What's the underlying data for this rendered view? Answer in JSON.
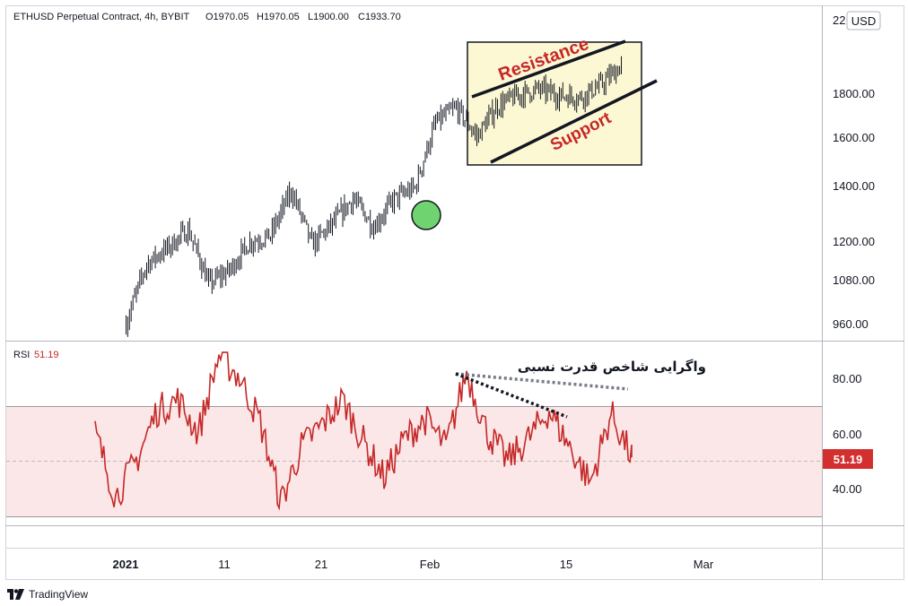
{
  "header": {
    "symbol": "ETHUSD Perpetual Contract, 4h, BYBIT",
    "open": "O1970.05",
    "high": "H1970.05",
    "low": "L1900.00",
    "close": "C1933.70"
  },
  "price_axis": {
    "currency_badge": "USD",
    "top_label": "22",
    "ticks": [
      "1800.00",
      "1600.00",
      "1400.00",
      "1200.00",
      "1080.00",
      "960.00"
    ]
  },
  "rsi_pane": {
    "label": "RSI",
    "value": "51.19",
    "ticks": [
      "80.00",
      "60.00",
      "40.00"
    ],
    "badge": "51.19"
  },
  "annotations": {
    "resistance": "Resistance",
    "support": "Support",
    "divergence": "واگرایی شاخص قدرت نسبی"
  },
  "time_axis": {
    "labels": [
      "2021",
      "11",
      "21",
      "Feb",
      "15",
      "Mar"
    ]
  },
  "branding": {
    "text": "TradingView"
  },
  "colors": {
    "candles": "#131722",
    "rsi_line": "#c62828",
    "rsi_band": "#fbe7e7",
    "rsi_badge": "#d32f2f",
    "box_fill": "#fdf8d4",
    "annotation_text": "#c62828",
    "highlight_circle": "#6fd46f"
  },
  "chart_data": [
    {
      "type": "line",
      "name": "price",
      "description_units": "USD",
      "x": [
        "2021-01-04",
        "2021-01-06",
        "2021-01-08",
        "2021-01-10",
        "2021-01-12",
        "2021-01-14",
        "2021-01-16",
        "2021-01-18",
        "2021-01-20",
        "2021-01-22",
        "2021-01-24",
        "2021-01-26",
        "2021-01-28",
        "2021-01-30",
        "2021-02-01",
        "2021-02-03",
        "2021-02-05",
        "2021-02-07",
        "2021-02-09",
        "2021-02-11",
        "2021-02-13",
        "2021-02-15",
        "2021-02-17",
        "2021-02-19",
        "2021-02-21"
      ],
      "y": [
        960,
        1130,
        1180,
        1240,
        1070,
        1110,
        1200,
        1220,
        1380,
        1190,
        1260,
        1350,
        1250,
        1350,
        1390,
        1660,
        1730,
        1600,
        1740,
        1790,
        1820,
        1790,
        1780,
        1840,
        1940
      ],
      "ylim": [
        960,
        2000
      ],
      "scale": "log"
    },
    {
      "type": "line",
      "name": "RSI",
      "x": [
        "2021-01-01",
        "2021-01-03",
        "2021-01-05",
        "2021-01-07",
        "2021-01-09",
        "2021-01-11",
        "2021-01-13",
        "2021-01-15",
        "2021-01-17",
        "2021-01-19",
        "2021-01-21",
        "2021-01-23",
        "2021-01-25",
        "2021-01-27",
        "2021-01-29",
        "2021-01-31",
        "2021-02-02",
        "2021-02-04",
        "2021-02-06",
        "2021-02-08",
        "2021-02-10",
        "2021-02-12",
        "2021-02-14",
        "2021-02-16",
        "2021-02-18",
        "2021-02-20",
        "2021-02-22"
      ],
      "y": [
        60,
        37,
        50,
        68,
        72,
        60,
        88,
        80,
        64,
        35,
        55,
        63,
        72,
        57,
        44,
        58,
        65,
        55,
        82,
        60,
        50,
        58,
        68,
        55,
        42,
        67,
        51.19
      ],
      "ylim": [
        25,
        90
      ],
      "bands": [
        30,
        70
      ]
    }
  ]
}
